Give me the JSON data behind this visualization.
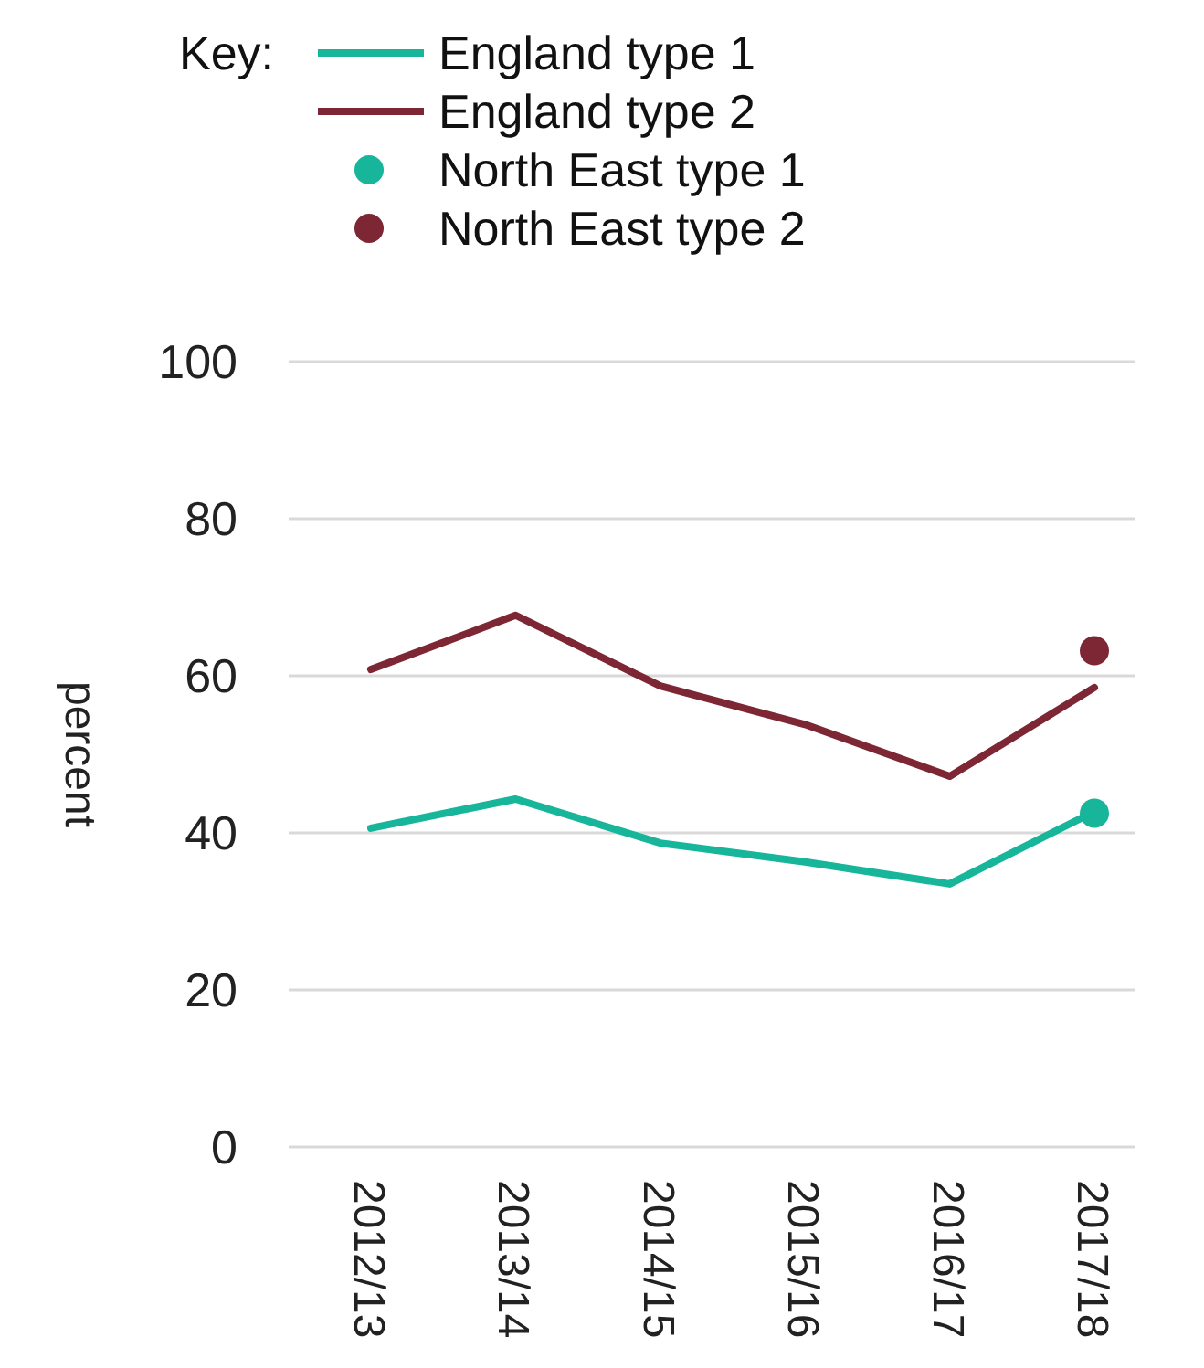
{
  "chart_data": {
    "type": "line",
    "ylabel": "percent",
    "legend_title": "Key:",
    "legend": "top left",
    "grid": "y",
    "categories": [
      "2012/13",
      "2013/14",
      "2014/15",
      "2015/16",
      "2016/17",
      "2017/18"
    ],
    "ylim": [
      0,
      100
    ],
    "yticks": [
      0,
      20,
      40,
      60,
      80,
      100
    ],
    "series": [
      {
        "name": "England type 1",
        "color": "#17b59a",
        "values": [
          40.6,
          44.3,
          38.7,
          36.3,
          33.5,
          42.7
        ]
      },
      {
        "name": "England type 2",
        "color": "#7d2634",
        "values": [
          60.8,
          67.7,
          58.7,
          53.8,
          47.2,
          58.5
        ]
      },
      {
        "name": "North East type 1",
        "type": "scatter",
        "color": "#17b59a",
        "values": [
          null,
          null,
          null,
          null,
          null,
          42.5
        ]
      },
      {
        "name": "North East type 2",
        "type": "scatter",
        "color": "#7d2634",
        "values": [
          null,
          null,
          null,
          null,
          null,
          63.2
        ]
      }
    ]
  }
}
